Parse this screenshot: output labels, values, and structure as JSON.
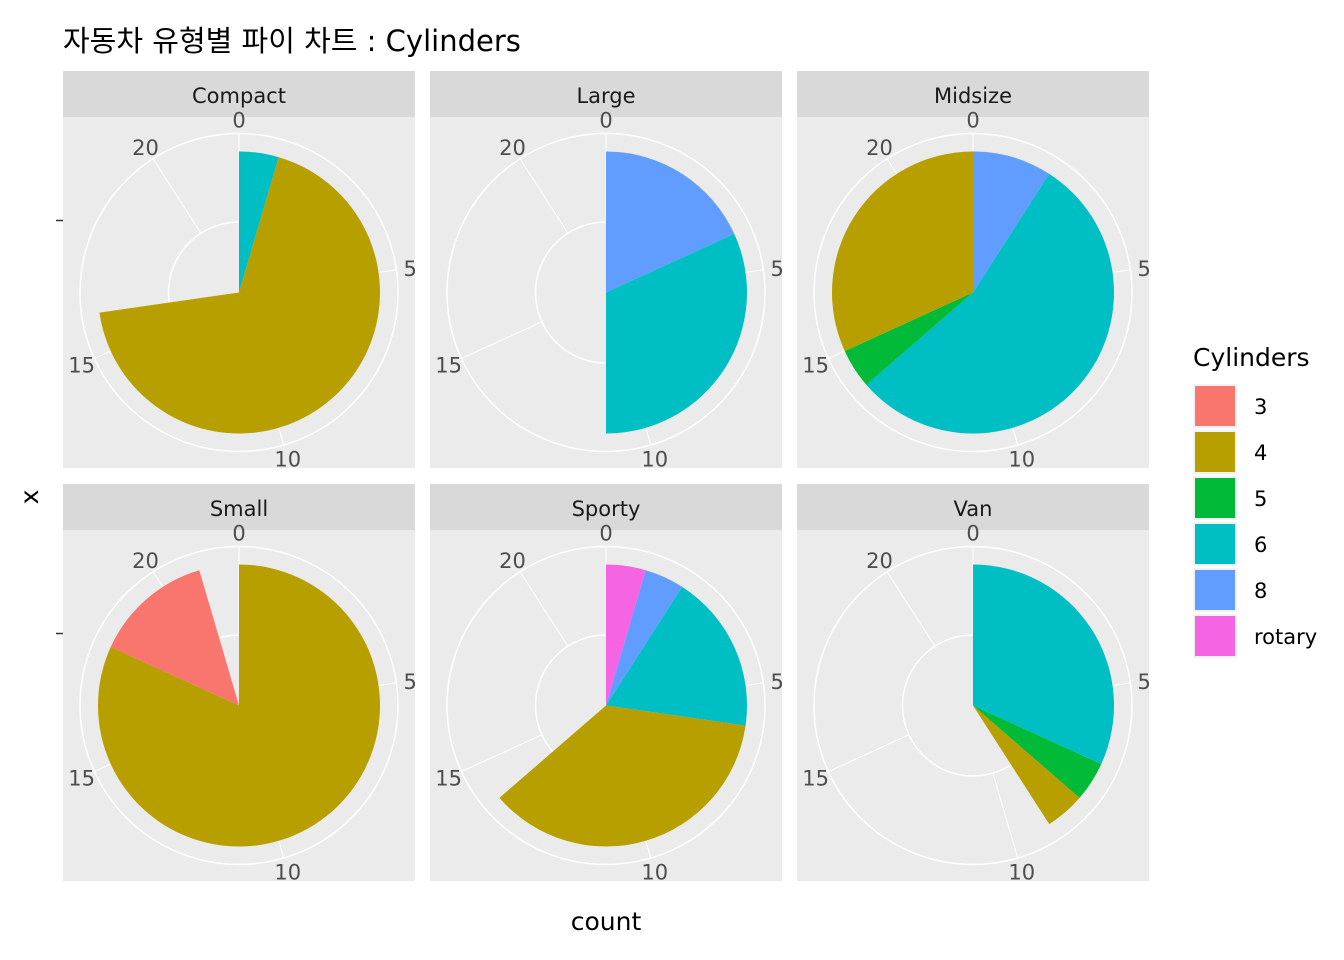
{
  "chart_data": {
    "type": "pie",
    "title": "자동차 유형별 파이 차트 : Cylinders",
    "xlabel": "count",
    "ylabel": "x",
    "axis_ticks": [
      "0",
      "5",
      "10",
      "15",
      "20"
    ],
    "radial_max": 22,
    "legend": {
      "title": "Cylinders",
      "position": "right",
      "entries": [
        {
          "label": "3",
          "color": "#F8766D"
        },
        {
          "label": "4",
          "color": "#B79F00"
        },
        {
          "label": "5",
          "color": "#00BA38"
        },
        {
          "label": "6",
          "color": "#00BFC4"
        },
        {
          "label": "8",
          "color": "#619CFF"
        },
        {
          "label": "rotary",
          "color": "#F564E3"
        }
      ]
    },
    "panels": [
      {
        "name": "Compact",
        "segments": [
          {
            "cylinders": "6",
            "count": 1
          },
          {
            "cylinders": "4",
            "count": 15
          }
        ]
      },
      {
        "name": "Large",
        "segments": [
          {
            "cylinders": "8",
            "count": 4
          },
          {
            "cylinders": "6",
            "count": 7
          }
        ]
      },
      {
        "name": "Midsize",
        "segments": [
          {
            "cylinders": "8",
            "count": 2
          },
          {
            "cylinders": "6",
            "count": 12
          },
          {
            "cylinders": "5",
            "count": 1
          },
          {
            "cylinders": "4",
            "count": 7
          }
        ]
      },
      {
        "name": "Small",
        "segments": [
          {
            "cylinders": "4",
            "count": 18
          },
          {
            "cylinders": "3",
            "count": 3
          }
        ]
      },
      {
        "name": "Sporty",
        "segments": [
          {
            "cylinders": "rotary",
            "count": 1
          },
          {
            "cylinders": "8",
            "count": 1
          },
          {
            "cylinders": "6",
            "count": 4
          },
          {
            "cylinders": "4",
            "count": 8
          }
        ]
      },
      {
        "name": "Van",
        "segments": [
          {
            "cylinders": "6",
            "count": 7
          },
          {
            "cylinders": "5",
            "count": 1
          },
          {
            "cylinders": "4",
            "count": 1
          }
        ]
      }
    ]
  }
}
